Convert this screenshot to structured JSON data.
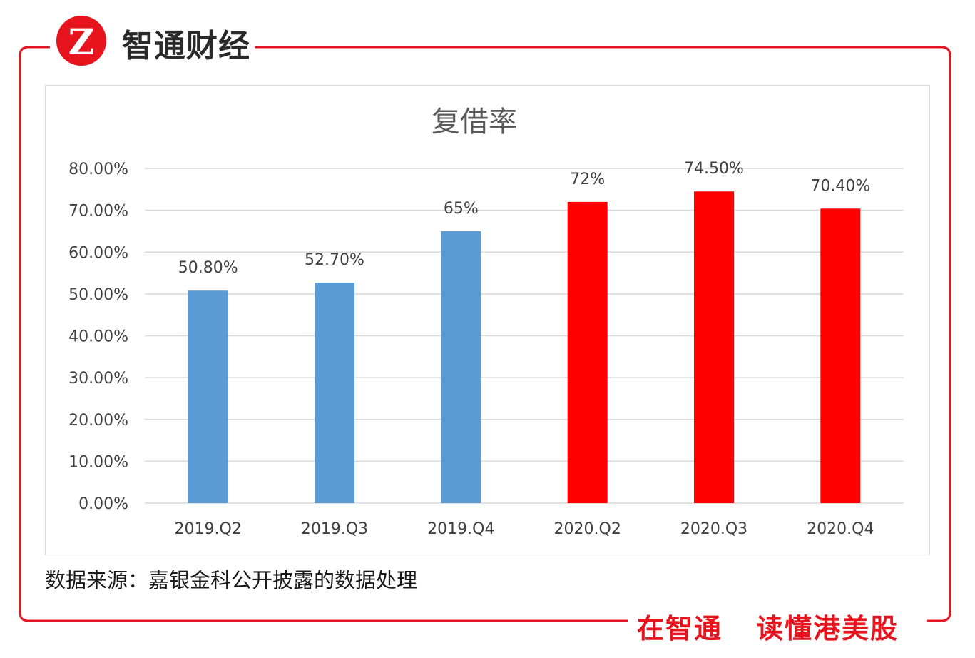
{
  "brand": {
    "logo_mark": "Z",
    "name": "智通财经",
    "slogan_left": "在智通",
    "slogan_right": "读懂港美股",
    "accent_color": "#e8141d"
  },
  "source_note": "数据来源：嘉银金科公开披露的数据处理",
  "chart_data": {
    "type": "bar",
    "title": "复借率",
    "categories": [
      "2019.Q2",
      "2019.Q3",
      "2019.Q4",
      "2020.Q2",
      "2020.Q3",
      "2020.Q4"
    ],
    "values": [
      50.8,
      52.7,
      65,
      72,
      74.5,
      70.4
    ],
    "data_labels": [
      "50.80%",
      "52.70%",
      "65%",
      "72%",
      "74.50%",
      "70.40%"
    ],
    "bar_colors": [
      "#5b9bd5",
      "#5b9bd5",
      "#5b9bd5",
      "#ff0000",
      "#ff0000",
      "#ff0000"
    ],
    "ylim": [
      0,
      80
    ],
    "yticks": [
      0,
      10,
      20,
      30,
      40,
      50,
      60,
      70,
      80
    ],
    "ytick_labels": [
      "0.00%",
      "10.00%",
      "20.00%",
      "30.00%",
      "40.00%",
      "50.00%",
      "60.00%",
      "70.00%",
      "80.00%"
    ],
    "grid": true,
    "gridline_color": "#d9d9d9",
    "xlabel": "",
    "ylabel": ""
  }
}
